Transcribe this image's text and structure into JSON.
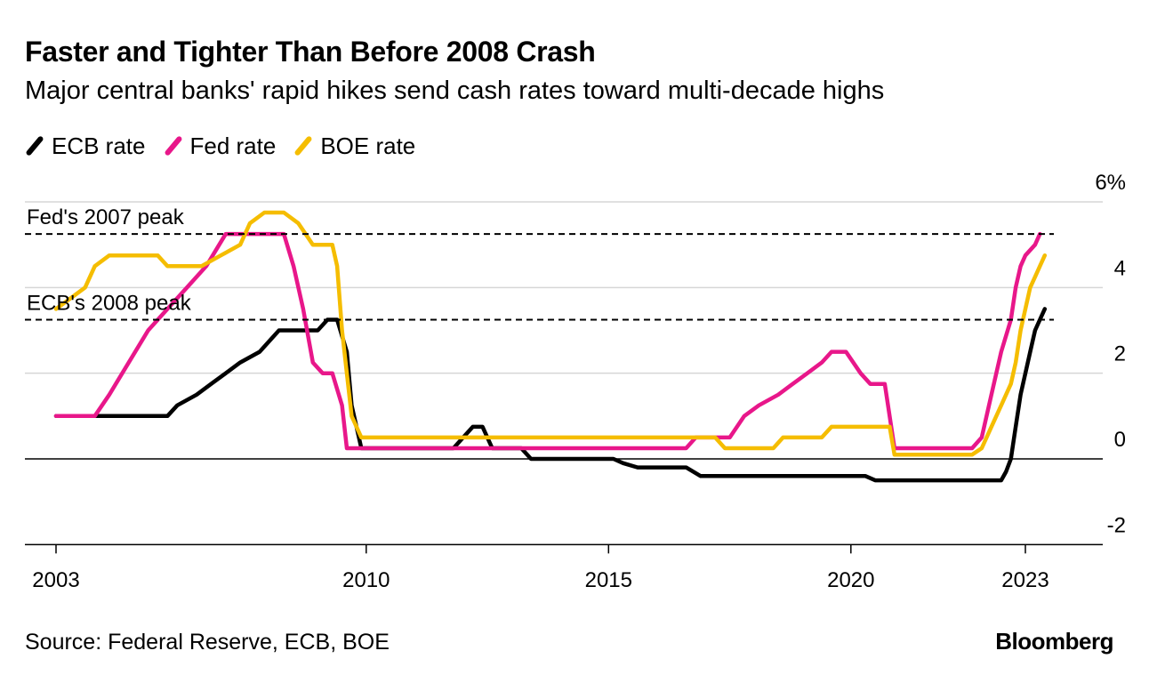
{
  "header": {
    "title": "Faster and Tighter Than Before 2008 Crash",
    "subtitle": "Major central banks' rapid hikes send cash rates toward multi-decade highs"
  },
  "legend": [
    {
      "label": "ECB rate",
      "color": "#000000"
    },
    {
      "label": "Fed rate",
      "color": "#e8178a"
    },
    {
      "label": "BOE rate",
      "color": "#f5bd00"
    }
  ],
  "footer": {
    "source": "Source: Federal Reserve, ECB, BOE",
    "brand": "Bloomberg"
  },
  "chart_data": {
    "type": "line",
    "title": "Faster and Tighter Than Before 2008 Crash",
    "subtitle": "Major central banks' rapid hikes send cash rates toward multi-decade highs",
    "xlabel": "",
    "ylabel": "",
    "xlim": [
      2003,
      2023.6
    ],
    "ylim": [
      -2,
      6
    ],
    "x_ticks": [
      "2003",
      "2010",
      "2015",
      "2020",
      "2023"
    ],
    "x_tick_values": [
      2003,
      2009.4,
      2014.4,
      2019.4,
      2023
    ],
    "y_ticks": [
      {
        "value": 6,
        "label": "6%"
      },
      {
        "value": 4,
        "label": "4"
      },
      {
        "value": 2,
        "label": "2"
      },
      {
        "value": 0,
        "label": "0"
      },
      {
        "value": -2,
        "label": "-2"
      }
    ],
    "grid": true,
    "legend_position": "top-left",
    "reference_lines": [
      {
        "label": "Fed's 2007 peak",
        "value": 5.25
      },
      {
        "label": "ECB's 2008 peak",
        "value": 3.25
      }
    ],
    "series": [
      {
        "name": "ECB rate",
        "color": "#000000",
        "points": [
          [
            2003.0,
            1.0
          ],
          [
            2005.3,
            1.0
          ],
          [
            2005.5,
            1.25
          ],
          [
            2005.9,
            1.5
          ],
          [
            2006.2,
            1.75
          ],
          [
            2006.5,
            2.0
          ],
          [
            2006.8,
            2.25
          ],
          [
            2007.2,
            2.5
          ],
          [
            2007.6,
            3.0
          ],
          [
            2008.4,
            3.0
          ],
          [
            2008.6,
            3.25
          ],
          [
            2008.8,
            3.25
          ],
          [
            2009.0,
            2.5
          ],
          [
            2009.1,
            1.25
          ],
          [
            2009.3,
            0.25
          ],
          [
            2011.2,
            0.25
          ],
          [
            2011.4,
            0.5
          ],
          [
            2011.6,
            0.75
          ],
          [
            2011.8,
            0.75
          ],
          [
            2012.0,
            0.25
          ],
          [
            2012.6,
            0.25
          ],
          [
            2012.8,
            0.0
          ],
          [
            2014.5,
            0.0
          ],
          [
            2014.7,
            -0.1
          ],
          [
            2015.0,
            -0.2
          ],
          [
            2016.0,
            -0.2
          ],
          [
            2016.3,
            -0.4
          ],
          [
            2019.7,
            -0.4
          ],
          [
            2019.9,
            -0.5
          ],
          [
            2022.5,
            -0.5
          ],
          [
            2022.6,
            -0.3
          ],
          [
            2022.7,
            0.0
          ],
          [
            2022.8,
            0.75
          ],
          [
            2022.9,
            1.5
          ],
          [
            2023.0,
            2.0
          ],
          [
            2023.1,
            2.5
          ],
          [
            2023.2,
            3.0
          ],
          [
            2023.3,
            3.25
          ],
          [
            2023.4,
            3.5
          ]
        ]
      },
      {
        "name": "Fed rate",
        "color": "#e8178a",
        "points": [
          [
            2003.0,
            1.0
          ],
          [
            2003.8,
            1.0
          ],
          [
            2004.1,
            1.5
          ],
          [
            2004.5,
            2.25
          ],
          [
            2004.9,
            3.0
          ],
          [
            2005.3,
            3.5
          ],
          [
            2005.7,
            4.0
          ],
          [
            2006.1,
            4.5
          ],
          [
            2006.5,
            5.25
          ],
          [
            2007.7,
            5.25
          ],
          [
            2007.9,
            4.5
          ],
          [
            2008.1,
            3.5
          ],
          [
            2008.3,
            2.25
          ],
          [
            2008.5,
            2.0
          ],
          [
            2008.7,
            2.0
          ],
          [
            2008.9,
            1.25
          ],
          [
            2009.0,
            0.25
          ],
          [
            2016.0,
            0.25
          ],
          [
            2016.2,
            0.5
          ],
          [
            2016.9,
            0.5
          ],
          [
            2017.2,
            1.0
          ],
          [
            2017.5,
            1.25
          ],
          [
            2017.9,
            1.5
          ],
          [
            2018.2,
            1.75
          ],
          [
            2018.5,
            2.0
          ],
          [
            2018.8,
            2.25
          ],
          [
            2019.0,
            2.5
          ],
          [
            2019.3,
            2.5
          ],
          [
            2019.6,
            2.0
          ],
          [
            2019.8,
            1.75
          ],
          [
            2020.1,
            1.75
          ],
          [
            2020.3,
            0.25
          ],
          [
            2021.9,
            0.25
          ],
          [
            2022.1,
            0.5
          ],
          [
            2022.3,
            1.5
          ],
          [
            2022.5,
            2.5
          ],
          [
            2022.7,
            3.25
          ],
          [
            2022.8,
            4.0
          ],
          [
            2022.9,
            4.5
          ],
          [
            2023.0,
            4.75
          ],
          [
            2023.2,
            5.0
          ],
          [
            2023.3,
            5.25
          ]
        ]
      },
      {
        "name": "BOE rate",
        "color": "#f5bd00",
        "points": [
          [
            2003.0,
            3.5
          ],
          [
            2003.3,
            3.75
          ],
          [
            2003.6,
            4.0
          ],
          [
            2003.8,
            4.5
          ],
          [
            2004.1,
            4.75
          ],
          [
            2005.1,
            4.75
          ],
          [
            2005.3,
            4.5
          ],
          [
            2006.0,
            4.5
          ],
          [
            2006.4,
            4.75
          ],
          [
            2006.8,
            5.0
          ],
          [
            2007.0,
            5.5
          ],
          [
            2007.3,
            5.75
          ],
          [
            2007.7,
            5.75
          ],
          [
            2008.0,
            5.5
          ],
          [
            2008.3,
            5.0
          ],
          [
            2008.6,
            5.0
          ],
          [
            2008.7,
            5.0
          ],
          [
            2008.8,
            4.5
          ],
          [
            2008.9,
            3.0
          ],
          [
            2009.0,
            2.0
          ],
          [
            2009.1,
            1.0
          ],
          [
            2009.3,
            0.5
          ],
          [
            2016.6,
            0.5
          ],
          [
            2016.8,
            0.25
          ],
          [
            2017.8,
            0.25
          ],
          [
            2018.0,
            0.5
          ],
          [
            2018.8,
            0.5
          ],
          [
            2019.0,
            0.75
          ],
          [
            2020.2,
            0.75
          ],
          [
            2020.3,
            0.1
          ],
          [
            2021.9,
            0.1
          ],
          [
            2022.1,
            0.25
          ],
          [
            2022.3,
            0.75
          ],
          [
            2022.5,
            1.25
          ],
          [
            2022.7,
            1.75
          ],
          [
            2022.8,
            2.25
          ],
          [
            2022.9,
            3.0
          ],
          [
            2023.0,
            3.5
          ],
          [
            2023.1,
            4.0
          ],
          [
            2023.2,
            4.25
          ],
          [
            2023.3,
            4.5
          ],
          [
            2023.4,
            4.75
          ]
        ]
      }
    ]
  }
}
